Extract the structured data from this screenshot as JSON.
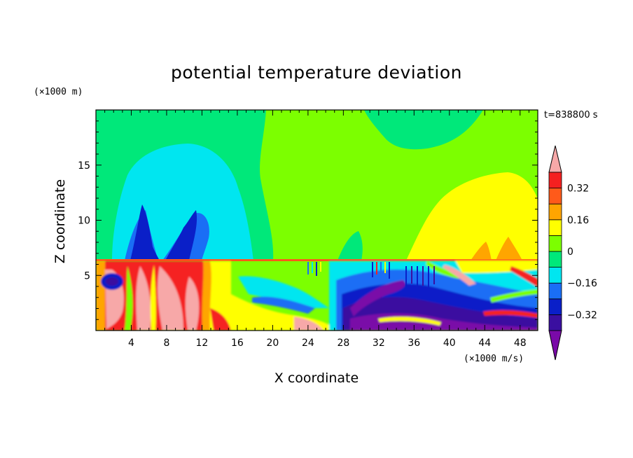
{
  "chart_data": {
    "type": "heatmap",
    "title": "potential temperature deviation",
    "xlabel": "X coordinate",
    "ylabel": "Z coordinate",
    "x_unit": "(×1000 m/s)",
    "y_unit": "(×1000 m)",
    "time_label": "t=838800 s",
    "xlim": [
      0,
      50
    ],
    "ylim": [
      0,
      20
    ],
    "x_ticks": [
      4,
      8,
      12,
      16,
      20,
      24,
      28,
      32,
      36,
      40,
      44,
      48
    ],
    "y_ticks": [
      5,
      10,
      15
    ],
    "colorbar": {
      "levels": [
        -0.4,
        -0.32,
        -0.24,
        -0.16,
        -0.08,
        0,
        0.08,
        0.16,
        0.24,
        0.32,
        0.4
      ],
      "labels": [
        "0.32",
        "0.16",
        "0",
        "−0.16",
        "−0.32"
      ],
      "colors": [
        "#7a0aa8",
        "#3a0fa0",
        "#0a1fc8",
        "#1a6ef5",
        "#00e6f0",
        "#00e87a",
        "#7cff00",
        "#ffff00",
        "#ffa500",
        "#ff5a1a",
        "#f52020",
        "#f7a8a8"
      ],
      "extend": "both"
    },
    "regions": [
      {
        "value": 0.05,
        "color": "#7cff00"
      },
      {
        "value": -0.02,
        "color": "#00e87a"
      },
      {
        "value": -0.12,
        "color": "#00e6f0"
      },
      {
        "value": -0.2,
        "color": "#1a6ef5"
      },
      {
        "value": -0.28,
        "color": "#0a1fc8"
      },
      {
        "value": 0.12,
        "color": "#ffff00"
      },
      {
        "value": 0.2,
        "color": "#ffa500"
      },
      {
        "value": 0.3,
        "color": "#ff5a1a"
      },
      {
        "value": 0.36,
        "color": "#f52020"
      },
      {
        "value": 0.42,
        "color": "#f7a8a8"
      },
      {
        "value": -0.36,
        "color": "#3a0fa0"
      },
      {
        "value": -0.42,
        "color": "#7a0aa8"
      }
    ]
  }
}
